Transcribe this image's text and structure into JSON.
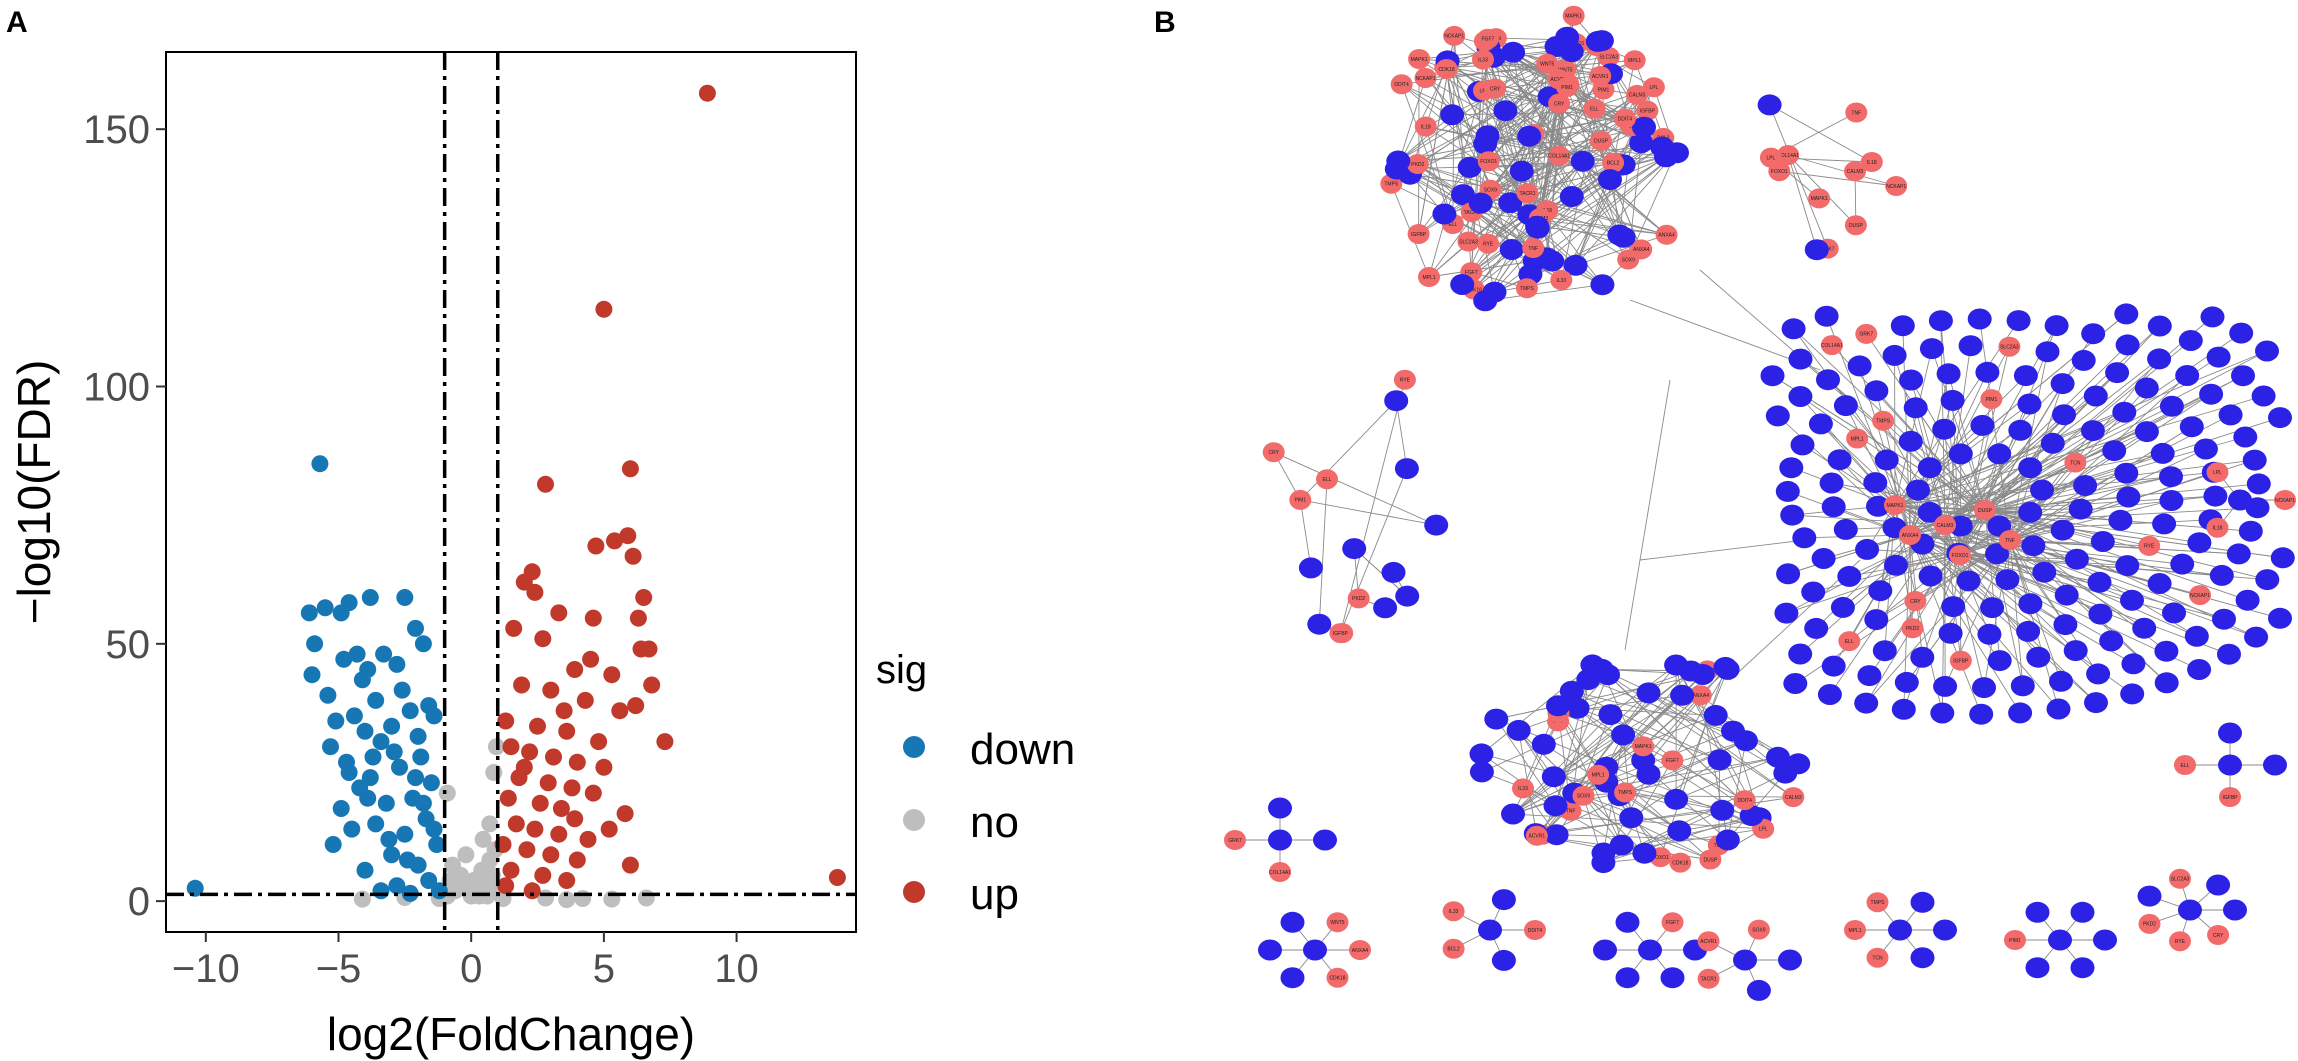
{
  "panels": {
    "a_label": "A",
    "b_label": "B"
  },
  "chart_data": [
    {
      "type": "scatter",
      "title": "",
      "xlabel": "log2(FoldChange)",
      "ylabel": "−log10(FDR)",
      "xlim": [
        -11.5,
        14.5
      ],
      "ylim": [
        -6,
        165
      ],
      "xticks": [
        -10,
        -5,
        0,
        5,
        10
      ],
      "yticks": [
        0,
        50,
        100,
        150
      ],
      "xtick_labels": [
        "−10",
        "−5",
        "0",
        "5",
        "10"
      ],
      "ytick_labels": [
        "0",
        "50",
        "100",
        "150"
      ],
      "thresholds": {
        "log2fc": [
          -1,
          1
        ],
        "neg_log10_fdr": 1.3
      },
      "legend": {
        "title": "sig",
        "position": "right",
        "entries": [
          {
            "name": "down",
            "color": "#1777b5"
          },
          {
            "name": "no",
            "color": "#bebebe"
          },
          {
            "name": "up",
            "color": "#c0392b"
          }
        ]
      },
      "series": [
        {
          "name": "down",
          "color": "#1777b5",
          "points": [
            [
              -10.4,
              2.5
            ],
            [
              -5.7,
              85
            ],
            [
              -6.1,
              56
            ],
            [
              -5.5,
              57
            ],
            [
              -4.9,
              56
            ],
            [
              -3.8,
              59
            ],
            [
              -4.6,
              58
            ],
            [
              -2.5,
              59
            ],
            [
              -2.1,
              53
            ],
            [
              -1.8,
              50
            ],
            [
              -4.3,
              48
            ],
            [
              -3.3,
              48
            ],
            [
              -2.8,
              46
            ],
            [
              -5.9,
              50
            ],
            [
              -4.8,
              47
            ],
            [
              -3.9,
              45
            ],
            [
              -6.0,
              44
            ],
            [
              -4.1,
              43
            ],
            [
              -2.6,
              41
            ],
            [
              -1.6,
              38
            ],
            [
              -5.4,
              40
            ],
            [
              -3.6,
              39
            ],
            [
              -2.3,
              37
            ],
            [
              -4.4,
              36
            ],
            [
              -5.1,
              35
            ],
            [
              -1.4,
              36
            ],
            [
              -3.0,
              34
            ],
            [
              -4.0,
              33
            ],
            [
              -2.0,
              32
            ],
            [
              -5.3,
              30
            ],
            [
              -3.4,
              31
            ],
            [
              -1.9,
              28
            ],
            [
              -4.7,
              27
            ],
            [
              -2.7,
              26
            ],
            [
              -3.8,
              24
            ],
            [
              -1.5,
              23
            ],
            [
              -4.2,
              22
            ],
            [
              -2.2,
              20
            ],
            [
              -3.2,
              19
            ],
            [
              -4.9,
              18
            ],
            [
              -1.7,
              16
            ],
            [
              -3.6,
              15
            ],
            [
              -2.5,
              13
            ],
            [
              -5.2,
              11
            ],
            [
              -1.3,
              11
            ],
            [
              -3.0,
              9
            ],
            [
              -2.0,
              7
            ],
            [
              -4.0,
              6
            ],
            [
              -1.6,
              4
            ],
            [
              -2.8,
              3
            ],
            [
              -3.4,
              2
            ],
            [
              -1.2,
              2
            ],
            [
              -2.3,
              1.5
            ],
            [
              -4.5,
              14
            ],
            [
              -3.9,
              20
            ],
            [
              -2.9,
              29
            ],
            [
              -2.1,
              24
            ],
            [
              -4.6,
              25
            ],
            [
              -1.8,
              19
            ],
            [
              -3.1,
              12
            ],
            [
              -2.4,
              8
            ],
            [
              -3.7,
              28
            ],
            [
              -1.4,
              14
            ]
          ]
        },
        {
          "name": "no",
          "color": "#bebebe",
          "points": [
            [
              -0.9,
              1
            ],
            [
              -0.6,
              2
            ],
            [
              -0.3,
              3
            ],
            [
              0.1,
              4
            ],
            [
              0.4,
              6
            ],
            [
              0.7,
              8
            ],
            [
              0.9,
              10
            ],
            [
              -0.7,
              7
            ],
            [
              -0.4,
              5
            ],
            [
              0.2,
              2
            ],
            [
              0.5,
              3
            ],
            [
              0.8,
              5
            ],
            [
              -0.8,
              4
            ],
            [
              0.0,
              1
            ],
            [
              0.3,
              1
            ],
            [
              0.6,
              1
            ],
            [
              0.9,
              2
            ],
            [
              1.2,
              0.5
            ],
            [
              -1.2,
              0.5
            ],
            [
              -2.5,
              0.7
            ],
            [
              -4.1,
              0.4
            ],
            [
              2.8,
              0.6
            ],
            [
              4.2,
              0.5
            ],
            [
              5.3,
              0.4
            ],
            [
              6.6,
              0.6
            ],
            [
              3.6,
              0.3
            ],
            [
              0.95,
              30
            ],
            [
              0.85,
              25
            ],
            [
              -0.9,
              21
            ],
            [
              0.7,
              15
            ],
            [
              -0.2,
              9
            ],
            [
              0.45,
              12
            ]
          ]
        },
        {
          "name": "up",
          "color": "#c0392b",
          "points": [
            [
              8.9,
              157
            ],
            [
              5.0,
              115
            ],
            [
              2.8,
              81
            ],
            [
              6.0,
              84
            ],
            [
              5.9,
              71
            ],
            [
              5.4,
              70
            ],
            [
              4.7,
              69
            ],
            [
              6.1,
              67
            ],
            [
              2.3,
              64
            ],
            [
              2.0,
              62
            ],
            [
              2.4,
              60
            ],
            [
              6.5,
              59
            ],
            [
              3.3,
              56
            ],
            [
              4.6,
              55
            ],
            [
              6.3,
              55
            ],
            [
              1.6,
              53
            ],
            [
              2.7,
              51
            ],
            [
              6.4,
              49
            ],
            [
              6.7,
              49
            ],
            [
              4.5,
              47
            ],
            [
              3.9,
              45
            ],
            [
              5.3,
              44
            ],
            [
              6.8,
              42
            ],
            [
              1.9,
              42
            ],
            [
              3.0,
              41
            ],
            [
              4.3,
              39
            ],
            [
              6.2,
              38
            ],
            [
              5.6,
              37
            ],
            [
              7.3,
              31
            ],
            [
              1.3,
              35
            ],
            [
              2.5,
              34
            ],
            [
              3.6,
              33
            ],
            [
              4.8,
              31
            ],
            [
              1.5,
              30
            ],
            [
              2.2,
              29
            ],
            [
              3.1,
              28
            ],
            [
              4.0,
              27
            ],
            [
              5.0,
              26
            ],
            [
              1.8,
              24
            ],
            [
              2.9,
              23
            ],
            [
              3.8,
              22
            ],
            [
              4.6,
              21
            ],
            [
              1.4,
              20
            ],
            [
              2.6,
              19
            ],
            [
              3.4,
              18
            ],
            [
              5.8,
              17
            ],
            [
              1.7,
              15
            ],
            [
              2.4,
              14
            ],
            [
              3.3,
              13
            ],
            [
              4.4,
              12
            ],
            [
              1.2,
              11
            ],
            [
              2.1,
              10
            ],
            [
              3.0,
              9
            ],
            [
              4.0,
              8
            ],
            [
              1.5,
              6
            ],
            [
              2.7,
              5
            ],
            [
              3.6,
              4
            ],
            [
              1.3,
              3
            ],
            [
              2.3,
              2
            ],
            [
              13.8,
              4.6
            ],
            [
              5.2,
              14
            ],
            [
              6.0,
              7
            ],
            [
              3.9,
              16
            ],
            [
              2.0,
              26
            ],
            [
              3.5,
              37
            ]
          ]
        }
      ]
    }
  ],
  "network": {
    "up_color": "#f26a6a",
    "down_color": "#2c22e6",
    "edge_color": "#8a8a8a",
    "up_labels": [
      "TCN",
      "MPL1",
      "TMPS",
      "PIM1",
      "CRY",
      "RYE",
      "PKD2",
      "SLC2A3",
      "IGFBP",
      "ELL",
      "COL14A1",
      "GRK7",
      "NCKAP1",
      "IL18",
      "LPL",
      "DUSP",
      "CALM3",
      "TNF",
      "FOXO1",
      "MAPK1",
      "ANXA4",
      "CDK18",
      "WNT5",
      "DDIT4",
      "BCL2",
      "IL33",
      "FGF7",
      "TACR1",
      "ACVR1",
      "SOX9"
    ]
  }
}
